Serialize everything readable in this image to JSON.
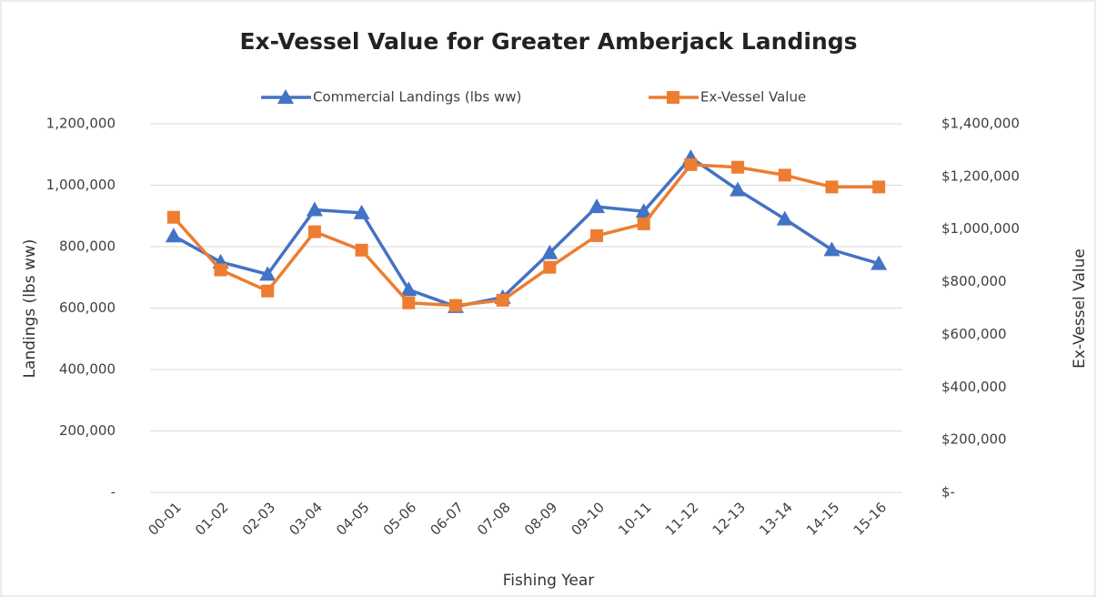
{
  "chart_data": {
    "type": "line",
    "title": "Ex-Vessel Value for Greater Amberjack Landings",
    "xlabel": "Fishing Year",
    "ylabel": "Landings (lbs ww)",
    "y2label": "Ex-Vessel Value",
    "categories": [
      "00-01",
      "01-02",
      "02-03",
      "03-04",
      "04-05",
      "05-06",
      "06-07",
      "07-08",
      "08-09",
      "09-10",
      "10-11",
      "11-12",
      "12-13",
      "13-14",
      "14-15",
      "15-16"
    ],
    "series": [
      {
        "name": "Commercial Landings (lbs ww)",
        "color": "#4472c4",
        "marker": "triangle",
        "axis": "y",
        "values": [
          835000,
          750000,
          710000,
          920000,
          910000,
          660000,
          605000,
          635000,
          780000,
          930000,
          915000,
          1090000,
          985000,
          890000,
          790000,
          745000
        ]
      },
      {
        "name": "Ex-Vessel Value",
        "color": "#ed7d31",
        "marker": "square",
        "axis": "y2",
        "values": [
          1045000,
          845000,
          765000,
          990000,
          920000,
          720000,
          710000,
          730000,
          855000,
          975000,
          1020000,
          1245000,
          1235000,
          1205000,
          1160000,
          1160000
        ]
      }
    ],
    "ylim": [
      0,
      1200000
    ],
    "yticks": [
      {
        "value": 0,
        "label": "-"
      },
      {
        "value": 200000,
        "label": "200,000"
      },
      {
        "value": 400000,
        "label": "400,000"
      },
      {
        "value": 600000,
        "label": "600,000"
      },
      {
        "value": 800000,
        "label": "800,000"
      },
      {
        "value": 1000000,
        "label": "1,000,000"
      },
      {
        "value": 1200000,
        "label": "1,200,000"
      }
    ],
    "y2lim": [
      0,
      1400000
    ],
    "y2ticks": [
      {
        "value": 0,
        "label": "$-"
      },
      {
        "value": 200000,
        "label": "$200,000"
      },
      {
        "value": 400000,
        "label": "$400,000"
      },
      {
        "value": 600000,
        "label": "$600,000"
      },
      {
        "value": 800000,
        "label": "$800,000"
      },
      {
        "value": 1000000,
        "label": "$1,000,000"
      },
      {
        "value": 1200000,
        "label": "$1,200,000"
      },
      {
        "value": 1400000,
        "label": "$1,400,000"
      }
    ],
    "grid": true,
    "legend": "top"
  }
}
